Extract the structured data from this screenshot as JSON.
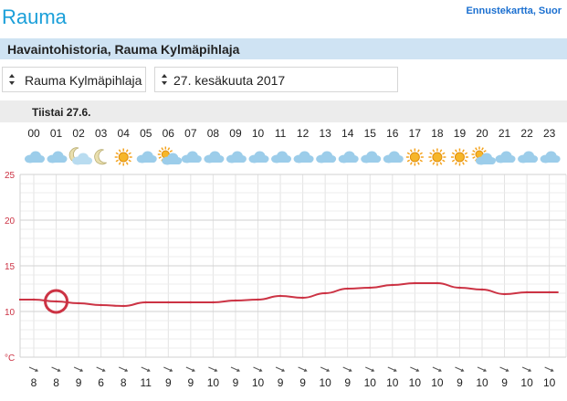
{
  "header": {
    "city": "Rauma",
    "top_link": "Ennustekartta, Suor"
  },
  "section": {
    "title": "Havaintohistoria, Rauma Kylmäpihlaja"
  },
  "controls": {
    "station": "Rauma Kylmäpihlaja",
    "date": "27. kesäkuuta 2017"
  },
  "day_label": "Tiistai 27.6.",
  "colors": {
    "accent": "#1a9fd9",
    "line": "#cc3344",
    "sun": "#f4a21c",
    "cloud": "#8cc3e6"
  },
  "hours": [
    "00",
    "01",
    "02",
    "03",
    "04",
    "05",
    "06",
    "07",
    "08",
    "09",
    "10",
    "11",
    "12",
    "13",
    "14",
    "15",
    "16",
    "17",
    "18",
    "19",
    "20",
    "21",
    "22",
    "23"
  ],
  "icons": [
    "cloudy-icon",
    "cloudy-icon",
    "moon-cloud-icon",
    "moon-icon",
    "sun-icon",
    "cloudy-icon",
    "sun-cloud-icon",
    "cloudy-icon",
    "cloudy-icon",
    "cloudy-icon",
    "cloudy-icon",
    "cloudy-icon",
    "cloudy-icon",
    "cloudy-icon",
    "cloudy-icon",
    "cloudy-icon",
    "cloudy-icon",
    "sun-icon",
    "sun-icon",
    "sun-icon",
    "sun-cloud-icon",
    "cloudy-icon",
    "cloudy-icon",
    "cloudy-icon"
  ],
  "wind_speeds": [
    "8",
    "8",
    "9",
    "6",
    "8",
    "11",
    "9",
    "9",
    "10",
    "9",
    "10",
    "9",
    "9",
    "10",
    "9",
    "10",
    "10",
    "10",
    "10",
    "9",
    "10",
    "9",
    "10",
    "10"
  ],
  "chart_data": {
    "type": "line",
    "x": [
      "00",
      "01",
      "02",
      "03",
      "04",
      "05",
      "06",
      "07",
      "08",
      "09",
      "10",
      "11",
      "12",
      "13",
      "14",
      "15",
      "16",
      "17",
      "18",
      "19",
      "20",
      "21",
      "22",
      "23"
    ],
    "series": [
      {
        "values": [
          11.3,
          11.1,
          10.9,
          10.7,
          10.6,
          11.0,
          11.0,
          11.0,
          11.0,
          11.2,
          11.3,
          11.7,
          11.5,
          12.0,
          12.5,
          12.6,
          12.9,
          13.1,
          13.1,
          12.6,
          12.4,
          11.9,
          12.1,
          12.1
        ]
      }
    ],
    "y_ticks": [
      "25",
      "20",
      "15",
      "10",
      "°C"
    ],
    "ylim": [
      5,
      25
    ],
    "highlight": {
      "x": "01",
      "y": 11.1
    },
    "grid": true
  }
}
